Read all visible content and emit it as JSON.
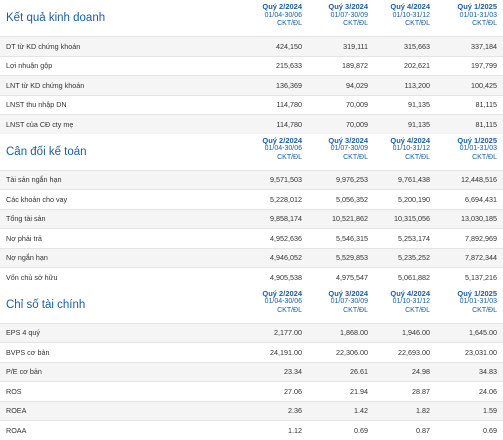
{
  "sections": [
    {
      "title": "Kết quả kinh doanh",
      "quarters": [
        {
          "q": "Quý 2/2024",
          "range": "01/04-30/06",
          "unit": "CKT/ĐL"
        },
        {
          "q": "Quý 3/2024",
          "range": "01/07-30/09",
          "unit": "CKT/ĐL"
        },
        {
          "q": "Quý 4/2024",
          "range": "01/10-31/12",
          "unit": "CKT/ĐL"
        },
        {
          "q": "Quý 1/2025",
          "range": "01/01-31/03",
          "unit": "CKT/ĐL"
        }
      ],
      "rows": [
        {
          "label": "DT từ KD chứng khoán",
          "values": [
            "424,150",
            "319,111",
            "315,663",
            "337,184"
          ]
        },
        {
          "label": "Lợi nhuận gộp",
          "values": [
            "215,633",
            "189,872",
            "202,621",
            "197,799"
          ]
        },
        {
          "label": "LNT từ KD chứng khoán",
          "values": [
            "136,369",
            "94,029",
            "113,200",
            "100,425"
          ]
        },
        {
          "label": "LNST thu nhập DN",
          "values": [
            "114,780",
            "70,009",
            "91,135",
            "81,115"
          ]
        },
        {
          "label": "LNST của CĐ cty mẹ",
          "values": [
            "114,780",
            "70,009",
            "91,135",
            "81,115"
          ]
        }
      ]
    },
    {
      "title": "Cân đối kế toán",
      "quarters": [
        {
          "q": "Quý 2/2024",
          "range": "01/04-30/06",
          "unit": "CKT/ĐL"
        },
        {
          "q": "Quý 3/2024",
          "range": "01/07-30/09",
          "unit": "CKT/ĐL"
        },
        {
          "q": "Quý 4/2024",
          "range": "01/10-31/12",
          "unit": "CKT/ĐL"
        },
        {
          "q": "Quý 1/2025",
          "range": "01/01-31/03",
          "unit": "CKT/ĐL"
        }
      ],
      "rows": [
        {
          "label": "Tài sản ngắn hạn",
          "values": [
            "9,571,503",
            "9,976,253",
            "9,761,438",
            "12,448,516"
          ]
        },
        {
          "label": "Các khoản cho vay",
          "values": [
            "5,228,012",
            "5,056,352",
            "5,200,190",
            "6,694,431"
          ]
        },
        {
          "label": "Tổng tài sản",
          "values": [
            "9,858,174",
            "10,521,862",
            "10,315,056",
            "13,030,185"
          ]
        },
        {
          "label": "Nợ phải trả",
          "values": [
            "4,952,636",
            "5,546,315",
            "5,253,174",
            "7,892,969"
          ]
        },
        {
          "label": "Nợ ngắn hạn",
          "values": [
            "4,946,052",
            "5,529,853",
            "5,235,252",
            "7,872,344"
          ]
        },
        {
          "label": "Vốn chủ sở hữu",
          "values": [
            "4,905,538",
            "4,975,547",
            "5,061,882",
            "5,137,216"
          ]
        }
      ]
    },
    {
      "title": "Chỉ số tài chính",
      "quarters": [
        {
          "q": "Quý 2/2024",
          "range": "01/04-30/06",
          "unit": "CKT/ĐL"
        },
        {
          "q": "Quý 3/2024",
          "range": "01/07-30/09",
          "unit": "CKT/ĐL"
        },
        {
          "q": "Quý 4/2024",
          "range": "01/10-31/12",
          "unit": "CKT/ĐL"
        },
        {
          "q": "Quý 1/2025",
          "range": "01/01-31/03",
          "unit": "CKT/ĐL"
        }
      ],
      "rows": [
        {
          "label": "EPS 4 quý",
          "values": [
            "2,177.00",
            "1,868.00",
            "1,946.00",
            "1,645.00"
          ]
        },
        {
          "label": "BVPS cơ bản",
          "values": [
            "24,191.00",
            "22,306.00",
            "22,693.00",
            "23,031.00"
          ]
        },
        {
          "label": "P/E cơ bản",
          "values": [
            "23.34",
            "26.61",
            "24.98",
            "34.83"
          ]
        },
        {
          "label": "ROS",
          "values": [
            "27.06",
            "21.94",
            "28.87",
            "24.06"
          ]
        },
        {
          "label": "ROEA",
          "values": [
            "2.36",
            "1.42",
            "1.82",
            "1.59"
          ]
        },
        {
          "label": "ROAA",
          "values": [
            "1.12",
            "0.69",
            "0.87",
            "0.69"
          ]
        }
      ]
    }
  ]
}
